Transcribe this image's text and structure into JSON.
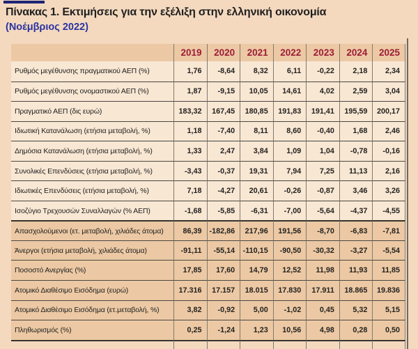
{
  "header": {
    "title": "Πίνακας 1. Εκτιμήσεις για την εξέλιξη στην ελληνική οικονομία",
    "subtitle": "(Νοέμβριος 2022)"
  },
  "colors": {
    "page_bg": "#f4d9bf",
    "light_row_bg": "#f8e7d3",
    "shaded_row_bg": "#ecc9a4",
    "year_text": "#9c1c37",
    "subtitle_text": "#2a33a0",
    "accent_bar": "#1d2475",
    "text": "#1f1f1f",
    "row_line": "#4a4742",
    "thick_line": "#36332e",
    "column_line": "#81796d",
    "right_rule": "#6f695f"
  },
  "table": {
    "years": [
      "2019",
      "2020",
      "2021",
      "2022",
      "2023",
      "2024",
      "2025"
    ],
    "rows": [
      {
        "label": "Ρυθμός μεγέθυνσης πραγματικού ΑΕΠ (%)",
        "values": [
          "1,76",
          "-8,64",
          "8,32",
          "6,11",
          "-0,22",
          "2,18",
          "2,34"
        ],
        "shaded": false
      },
      {
        "label": "Ρυθμός μεγέθυνσης ονομαστικού ΑΕΠ (%)",
        "values": [
          "1,87",
          "-9,15",
          "10,05",
          "14,61",
          "4,02",
          "2,59",
          "3,04"
        ],
        "shaded": false
      },
      {
        "label": "Πραγματικό ΑΕΠ (δις ευρώ)",
        "values": [
          "183,32",
          "167,45",
          "180,85",
          "191,83",
          "191,41",
          "195,59",
          "200,17"
        ],
        "shaded": false
      },
      {
        "label": "Ιδιωτική Κατανάλωση (ετήσια μεταβολή, %)",
        "values": [
          "1,18",
          "-7,40",
          "8,11",
          "8,60",
          "-0,40",
          "1,68",
          "2,46"
        ],
        "shaded": false
      },
      {
        "label": "Δημόσια Κατανάλωση (ετήσια μεταβολή, %)",
        "values": [
          "1,33",
          "2,47",
          "3,84",
          "1,09",
          "1,04",
          "-0,78",
          "-0,16"
        ],
        "shaded": false
      },
      {
        "label": "Συνολικές Επενδύσεις (ετήσια μεταβολή, %)",
        "values": [
          "-3,43",
          "-0,37",
          "19,31",
          "7,94",
          "7,25",
          "11,13",
          "2,16"
        ],
        "shaded": false
      },
      {
        "label": "Ιδιωτικές Επενδύσεις (ετήσια μεταβολή, %)",
        "values": [
          "7,18",
          "-4,27",
          "20,61",
          "-0,26",
          "-0,87",
          "3,46",
          "3,26"
        ],
        "shaded": false
      },
      {
        "label": "Ισοζύγιο Τρεχουσών Συναλλαγών (% ΑΕΠ)",
        "values": [
          "-1,68",
          "-5,85",
          "-6,31",
          "-7,00",
          "-5,64",
          "-4,37",
          "-4,55"
        ],
        "shaded": false
      },
      {
        "label": "Απασχολούμενοι (ετ. μεταβολή, χιλιάδες άτομα)",
        "values": [
          "86,39",
          "-182,86",
          "217,96",
          "191,56",
          "-8,70",
          "-6,83",
          "-7,81"
        ],
        "shaded": true,
        "thick_top": true
      },
      {
        "label": "Άνεργοι (ετήσια μεταβολή, χιλιάδες άτομα)",
        "values": [
          "-91,11",
          "-55,14",
          "-110,15",
          "-90,50",
          "-30,32",
          "-3,27",
          "-5,54"
        ],
        "shaded": true
      },
      {
        "label": "Ποσοστό Ανεργίας (%)",
        "values": [
          "17,85",
          "17,60",
          "14,79",
          "12,52",
          "11,98",
          "11,93",
          "11,85"
        ],
        "shaded": true
      },
      {
        "label": "Ατομικό Διαθέσιμο Εισόδημα (ευρώ)",
        "values": [
          "17.316",
          "17.157",
          "18.015",
          "17.830",
          "17.911",
          "18.865",
          "19.836"
        ],
        "shaded": true
      },
      {
        "label": "Ατομικό Διαθέσιμο Εισόδημα (ετ.μεταβολή, %)",
        "values": [
          "3,82",
          "-0,92",
          "5,00",
          "-1,02",
          "0,45",
          "5,32",
          "5,15"
        ],
        "shaded": true
      },
      {
        "label": "Πληθωρισμός (%)",
        "values": [
          "0,25",
          "-1,24",
          "1,23",
          "10,56",
          "4,98",
          "0,28",
          "0,50"
        ],
        "shaded": true
      }
    ]
  },
  "chart_data": {
    "type": "table",
    "title": "Πίνακας 1. Εκτιμήσεις για την εξέλιξη στην ελληνική οικονομία (Νοέμβριος 2022)",
    "columns": [
      "",
      "2019",
      "2020",
      "2021",
      "2022",
      "2023",
      "2024",
      "2025"
    ],
    "rows": [
      [
        "Ρυθμός μεγέθυνσης πραγματικού ΑΕΠ (%)",
        1.76,
        -8.64,
        8.32,
        6.11,
        -0.22,
        2.18,
        2.34
      ],
      [
        "Ρυθμός μεγέθυνσης ονομαστικού ΑΕΠ (%)",
        1.87,
        -9.15,
        10.05,
        14.61,
        4.02,
        2.59,
        3.04
      ],
      [
        "Πραγματικό ΑΕΠ (δις ευρώ)",
        183.32,
        167.45,
        180.85,
        191.83,
        191.41,
        195.59,
        200.17
      ],
      [
        "Ιδιωτική Κατανάλωση (ετήσια μεταβολή, %)",
        1.18,
        -7.4,
        8.11,
        8.6,
        -0.4,
        1.68,
        2.46
      ],
      [
        "Δημόσια Κατανάλωση (ετήσια μεταβολή, %)",
        1.33,
        2.47,
        3.84,
        1.09,
        1.04,
        -0.78,
        -0.16
      ],
      [
        "Συνολικές Επενδύσεις (ετήσια μεταβολή, %)",
        -3.43,
        -0.37,
        19.31,
        7.94,
        7.25,
        11.13,
        2.16
      ],
      [
        "Ιδιωτικές Επενδύσεις (ετήσια μεταβολή, %)",
        7.18,
        -4.27,
        20.61,
        -0.26,
        -0.87,
        3.46,
        3.26
      ],
      [
        "Ισοζύγιο Τρεχουσών Συναλλαγών (% ΑΕΠ)",
        -1.68,
        -5.85,
        -6.31,
        -7.0,
        -5.64,
        -4.37,
        -4.55
      ],
      [
        "Απασχολούμενοι (ετ. μεταβολή, χιλιάδες άτομα)",
        86.39,
        -182.86,
        217.96,
        191.56,
        -8.7,
        -6.83,
        -7.81
      ],
      [
        "Άνεργοι (ετήσια μεταβολή, χιλιάδες άτομα)",
        -91.11,
        -55.14,
        -110.15,
        -90.5,
        -30.32,
        -3.27,
        -5.54
      ],
      [
        "Ποσοστό Ανεργίας (%)",
        17.85,
        17.6,
        14.79,
        12.52,
        11.98,
        11.93,
        11.85
      ],
      [
        "Ατομικό Διαθέσιμο Εισόδημα (ευρώ)",
        17316,
        17157,
        18015,
        17830,
        17911,
        18865,
        19836
      ],
      [
        "Ατομικό Διαθέσιμο Εισόδημα (ετ.μεταβολή, %)",
        3.82,
        -0.92,
        5.0,
        -1.02,
        0.45,
        5.32,
        5.15
      ],
      [
        "Πληθωρισμός (%)",
        0.25,
        -1.24,
        1.23,
        10.56,
        4.98,
        0.28,
        0.5
      ]
    ]
  }
}
